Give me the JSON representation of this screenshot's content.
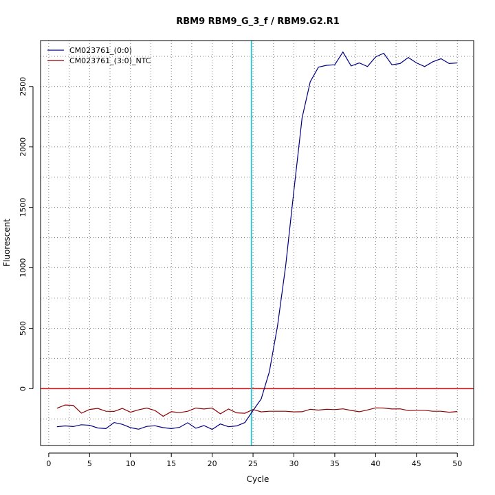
{
  "chart_data": {
    "type": "line",
    "title": "RBM9  RBM9_G_3_f / RBM9.G2.R1",
    "xlabel": "Cycle",
    "ylabel": "Fluorescent",
    "xlim": [
      -1.0,
      52.0
    ],
    "ylim": [
      -470,
      2880
    ],
    "x_ticks": [
      0,
      5,
      10,
      15,
      20,
      25,
      30,
      35,
      40,
      45,
      50
    ],
    "y_ticks": [
      0,
      500,
      1000,
      1500,
      2000,
      2500
    ],
    "grid": true,
    "legend_position": "top-left",
    "threshold_y": 0,
    "threshold_color": "#cc0000",
    "threshold_cycle": 24.8,
    "threshold_cycle_color": "#00ccdd",
    "series": [
      {
        "name": "CM023761_(0:0)",
        "color": "#000080",
        "x": [
          1,
          2,
          3,
          4,
          5,
          6,
          7,
          8,
          9,
          10,
          11,
          12,
          13,
          14,
          15,
          16,
          17,
          18,
          19,
          20,
          21,
          22,
          23,
          24,
          25,
          26,
          27,
          28,
          29,
          30,
          31,
          32,
          33,
          34,
          35,
          36,
          37,
          38,
          39,
          40,
          41,
          42,
          43,
          44,
          45,
          46,
          47,
          48,
          49,
          50
        ],
        "y": [
          -315,
          -308,
          -313,
          -298,
          -303,
          -325,
          -330,
          -280,
          -295,
          -322,
          -335,
          -312,
          -307,
          -322,
          -330,
          -320,
          -282,
          -327,
          -305,
          -337,
          -292,
          -315,
          -308,
          -280,
          -180,
          -85,
          140,
          520,
          1020,
          1640,
          2240,
          2540,
          2660,
          2675,
          2680,
          2785,
          2670,
          2695,
          2665,
          2745,
          2775,
          2680,
          2690,
          2740,
          2695,
          2665,
          2705,
          2730,
          2690,
          2695
        ]
      },
      {
        "name": "CM023761_(3:0)_NTC",
        "color": "#8b0000",
        "x": [
          1,
          2,
          3,
          4,
          5,
          6,
          7,
          8,
          9,
          10,
          11,
          12,
          13,
          14,
          15,
          16,
          17,
          18,
          19,
          20,
          21,
          22,
          23,
          24,
          25,
          26,
          27,
          28,
          29,
          30,
          31,
          32,
          33,
          34,
          35,
          36,
          37,
          38,
          39,
          40,
          41,
          42,
          43,
          44,
          45,
          46,
          47,
          48,
          49,
          50
        ],
        "y": [
          -162,
          -135,
          -138,
          -202,
          -172,
          -163,
          -187,
          -188,
          -163,
          -195,
          -175,
          -160,
          -180,
          -228,
          -190,
          -198,
          -187,
          -160,
          -168,
          -160,
          -208,
          -168,
          -200,
          -203,
          -172,
          -192,
          -187,
          -187,
          -187,
          -192,
          -191,
          -170,
          -177,
          -170,
          -173,
          -167,
          -180,
          -191,
          -176,
          -159,
          -160,
          -168,
          -167,
          -181,
          -179,
          -179,
          -187,
          -187,
          -195,
          -189
        ]
      }
    ]
  }
}
